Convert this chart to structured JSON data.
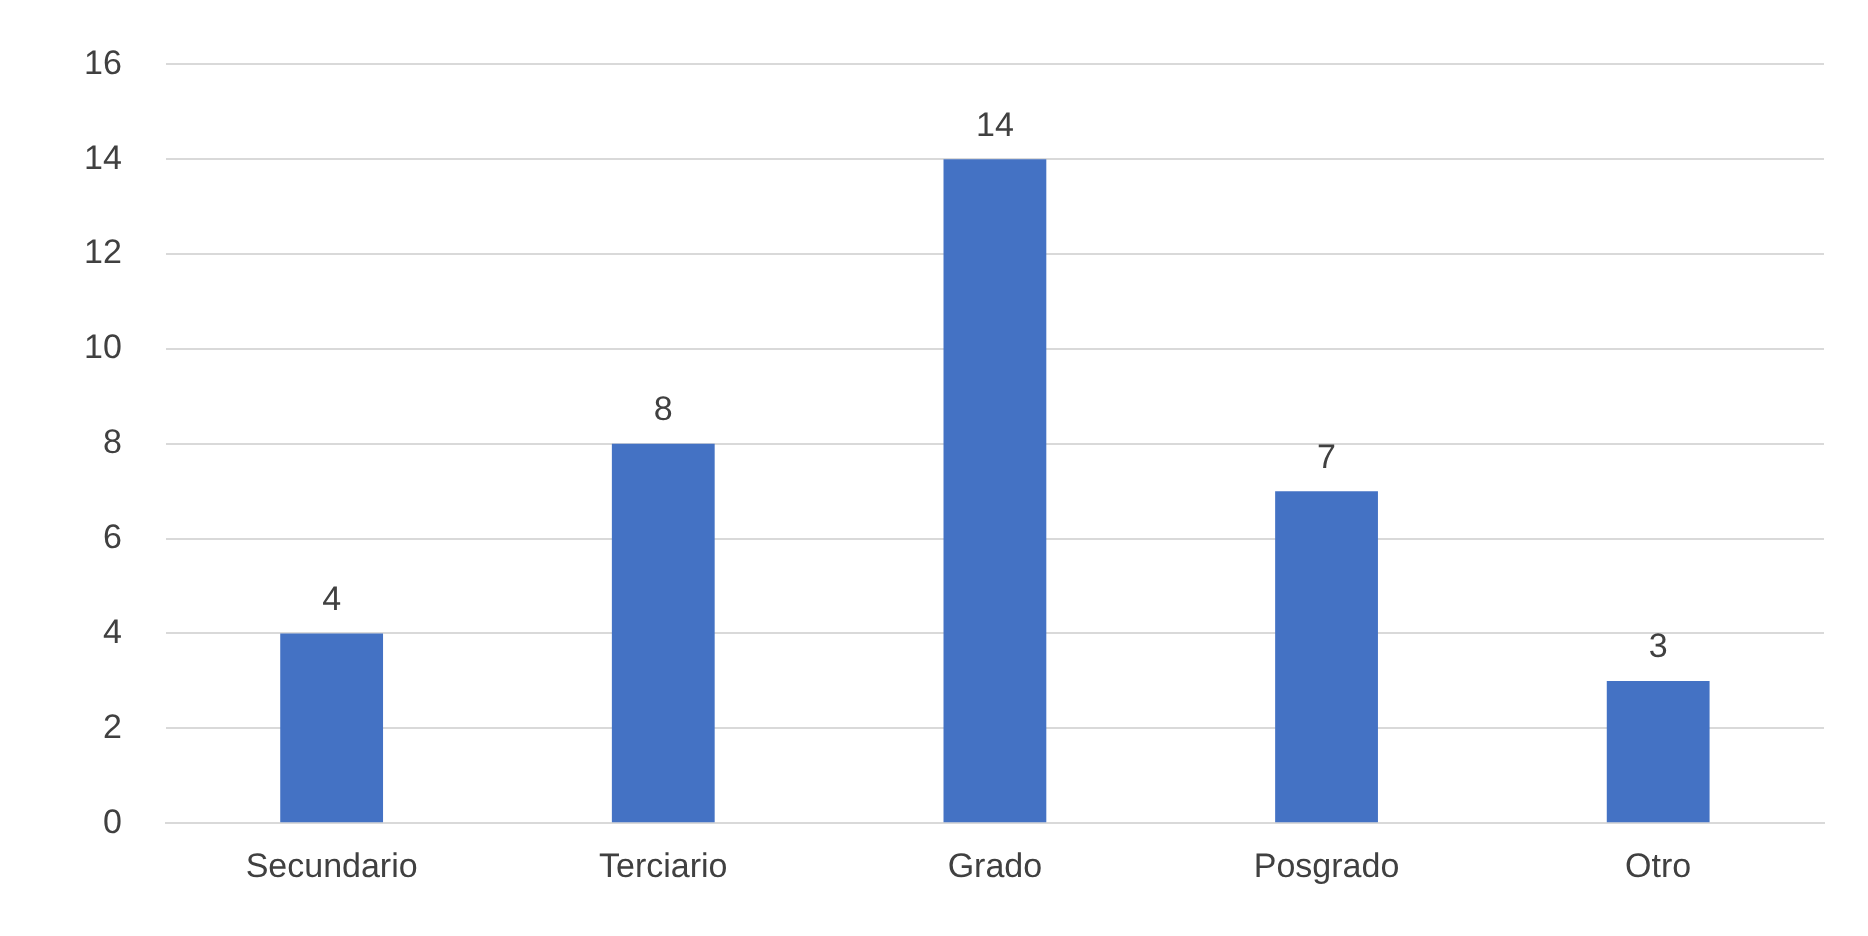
{
  "chart_data": {
    "type": "bar",
    "categories": [
      "Secundario",
      "Terciario",
      "Grado",
      "Posgrado",
      "Otro"
    ],
    "values": [
      4,
      8,
      14,
      7,
      3
    ],
    "color": "#4472c4",
    "ylim": [
      0,
      16
    ],
    "yticks": [
      0,
      2,
      4,
      6,
      8,
      10,
      12,
      14,
      16
    ],
    "grid": "y",
    "data_labels": true
  }
}
